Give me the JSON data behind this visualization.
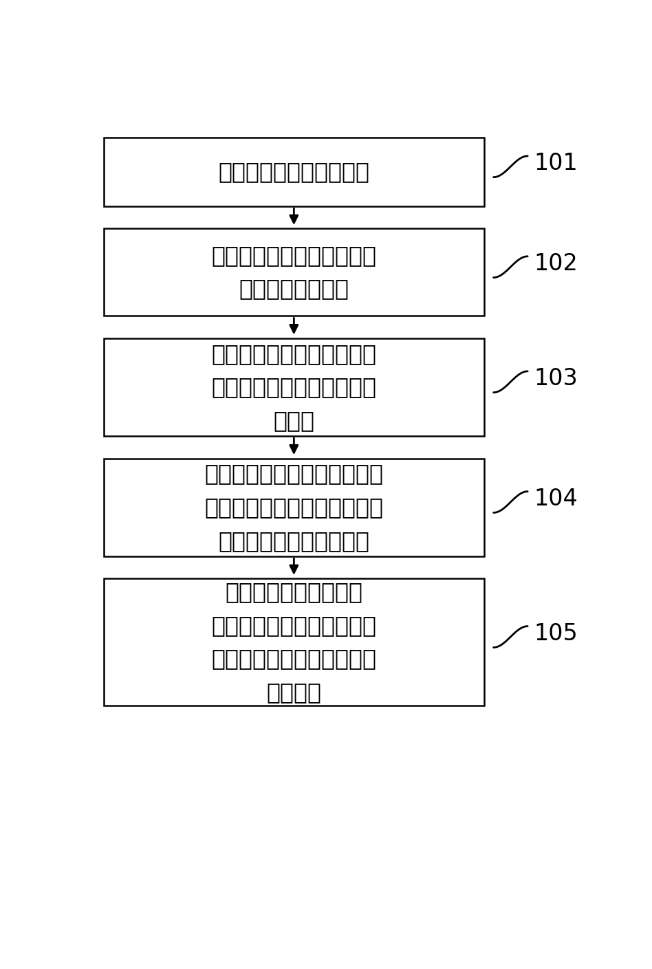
{
  "background_color": "#ffffff",
  "boxes": [
    {
      "id": 1,
      "text": "建立无线充电系统的模型",
      "lines": 1,
      "label": "101"
    },
    {
      "id": 2,
      "text": "根据实际需求，确定系统性\n能指标的目标函数",
      "lines": 2,
      "label": "102"
    },
    {
      "id": 3,
      "text": "在保证性能指标的前提下，\n确定系统电应力最小化的目\n标函数",
      "lines": 3,
      "label": "103"
    },
    {
      "id": 4,
      "text": "利用无线充电系统模型和目标\n函数，求解使无线充电系统电\n应力最小的补偿网络参数",
      "lines": 3,
      "label": "104"
    },
    {
      "id": 5,
      "text": "在实际系统中测试计算\n得到的补偿网络参数，并根\n据测试结果对补偿网络参数\n进行优化",
      "lines": 4,
      "label": "105"
    }
  ],
  "box_color": "#000000",
  "text_color": "#000000",
  "arrow_color": "#000000",
  "label_color": "#000000",
  "font_size": 24,
  "label_font_size": 24
}
